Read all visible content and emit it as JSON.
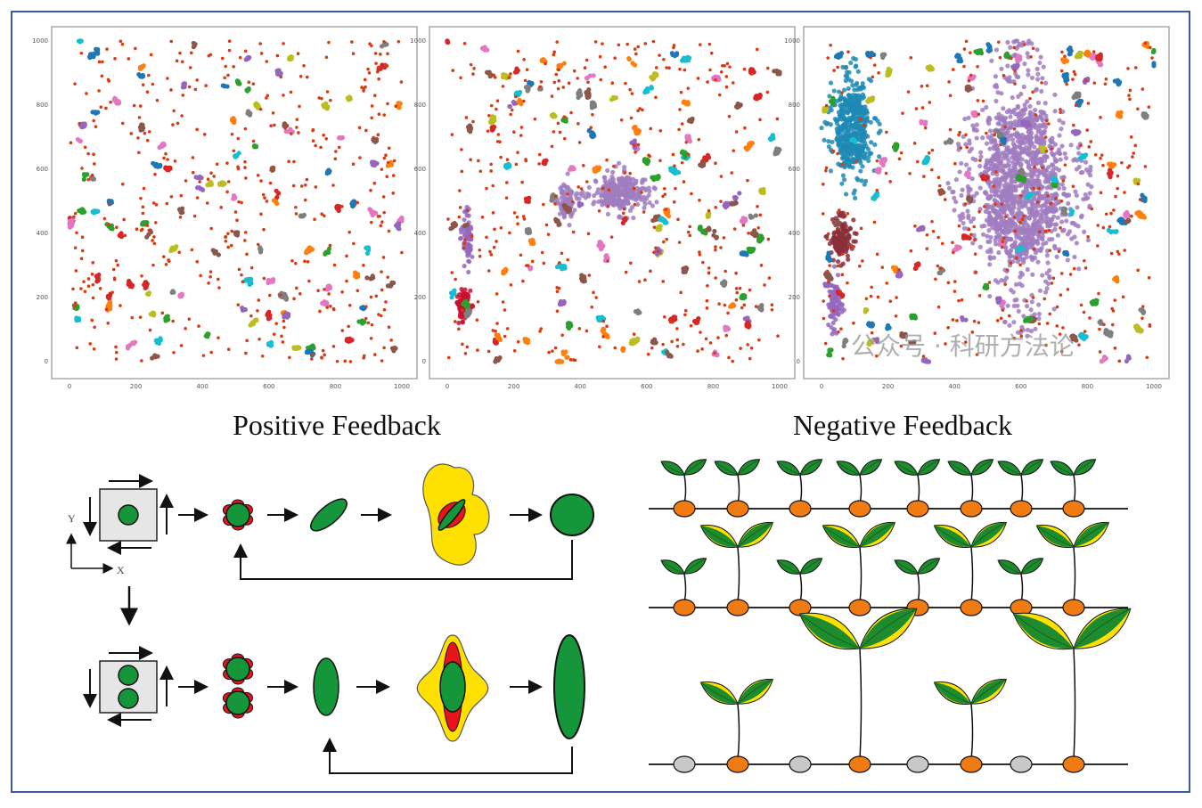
{
  "panels": [
    {
      "id": "positive-early",
      "x_ticks": [
        "0",
        "200",
        "400",
        "600",
        "800",
        "1000"
      ],
      "y_ticks": [
        "0",
        "200",
        "400",
        "600",
        "800",
        "1000"
      ],
      "xlim": [
        0,
        1000
      ],
      "ylim": [
        0,
        1000
      ],
      "large_cluster": "none"
    },
    {
      "id": "positive-mid",
      "x_ticks": [
        "0",
        "200",
        "400",
        "600",
        "800",
        "1000"
      ],
      "y_ticks": [
        "0",
        "200",
        "400",
        "600",
        "800",
        "1000"
      ],
      "xlim": [
        0,
        1000
      ],
      "ylim": [
        0,
        1000
      ],
      "large_cluster": "medium"
    },
    {
      "id": "negative-late",
      "x_ticks": [
        "0",
        "200",
        "400",
        "600",
        "800",
        "1000"
      ],
      "y_ticks": [
        "0",
        "200",
        "400",
        "600",
        "800",
        "1000"
      ],
      "xlim": [
        0,
        1000
      ],
      "ylim": [
        0,
        1000
      ],
      "large_cluster": "dominant"
    }
  ],
  "watermark": "公众号 · 科研方法论",
  "titles": {
    "positive": "Positive Feedback",
    "negative": "Negative Feedback"
  },
  "axis_labels": {
    "x": "X",
    "y": "Y"
  },
  "colors": {
    "frame": "#3b5b9e",
    "cell": "#16963a",
    "signal": "#e8141c",
    "halo": "#ffe000",
    "tuber": "#f07b12",
    "dormant": "#c8c8c8",
    "leaf": "#1e8c2e",
    "noise": "#d93a12"
  }
}
